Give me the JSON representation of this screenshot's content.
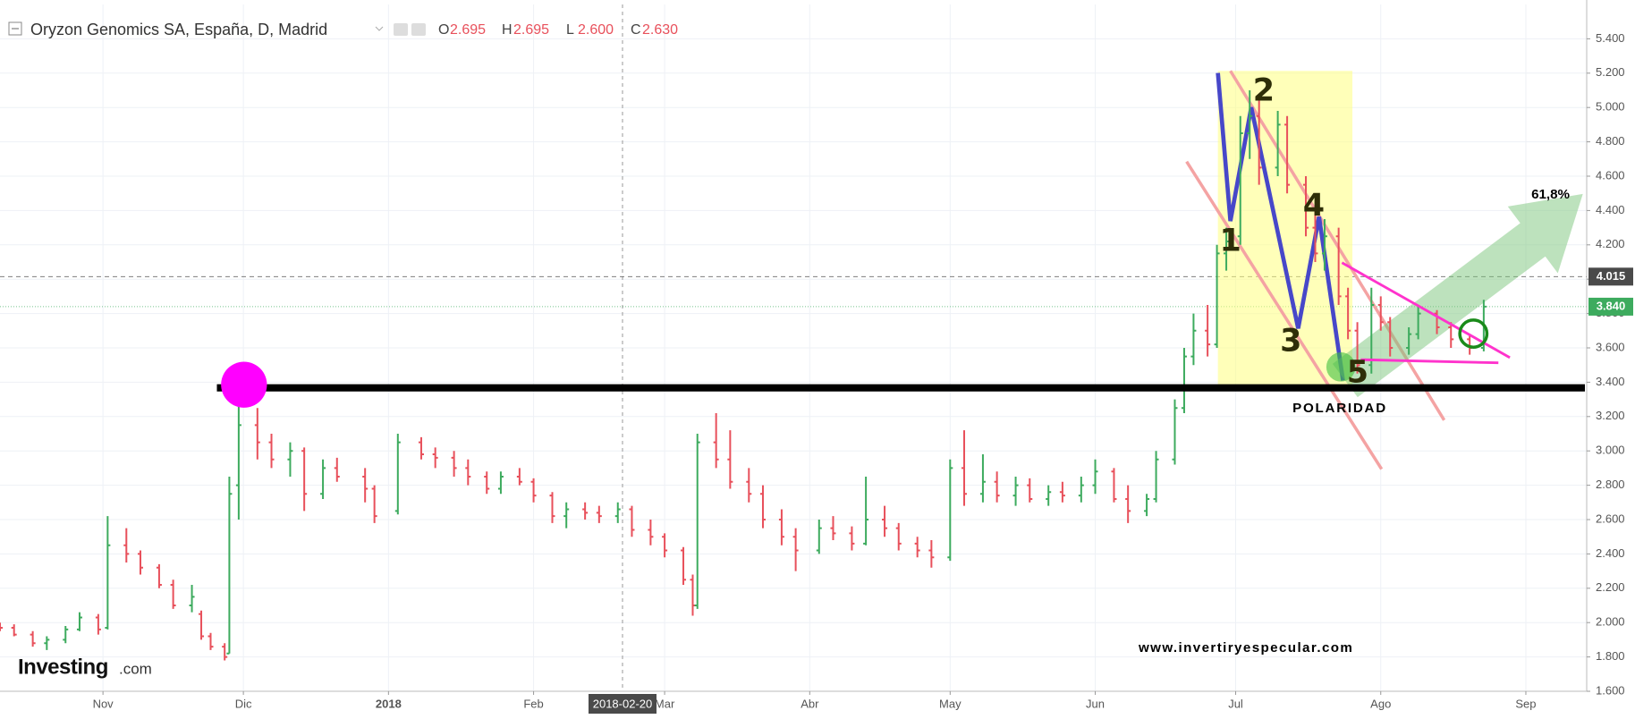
{
  "header": {
    "title": "Oryzon Genomics SA, España, D, Madrid",
    "ohlc": [
      {
        "key": "O",
        "text": "2.695"
      },
      {
        "key": "H",
        "text": "2.695"
      },
      {
        "key": "L",
        "text": "2.600"
      },
      {
        "key": "C",
        "text": "2.630"
      }
    ]
  },
  "logo": {
    "name": "Investing",
    "suffix": ".com"
  },
  "chart_data": {
    "type": "ohlc",
    "up_color": "#3dab5e",
    "down_color": "#e8505b",
    "grid": true,
    "x": [
      "2017-10-10",
      "2017-10-13",
      "2017-10-17",
      "2017-10-20",
      "2017-10-24",
      "2017-10-27",
      "2017-10-31",
      "2017-11-02",
      "2017-11-06",
      "2017-11-09",
      "2017-11-13",
      "2017-11-16",
      "2017-11-20",
      "2017-11-22",
      "2017-11-24",
      "2017-11-27",
      "2017-11-28",
      "2017-11-30",
      "2017-12-04",
      "2017-12-07",
      "2017-12-11",
      "2017-12-14",
      "2017-12-18",
      "2017-12-21",
      "2017-12-27",
      "2017-12-29",
      "2018-01-03",
      "2018-01-08",
      "2018-01-11",
      "2018-01-15",
      "2018-01-18",
      "2018-01-22",
      "2018-01-25",
      "2018-01-29",
      "2018-02-01",
      "2018-02-05",
      "2018-02-08",
      "2018-02-12",
      "2018-02-15",
      "2018-02-19",
      "2018-02-22",
      "2018-02-26",
      "2018-03-01",
      "2018-03-05",
      "2018-03-07",
      "2018-03-08",
      "2018-03-12",
      "2018-03-15",
      "2018-03-19",
      "2018-03-22",
      "2018-03-26",
      "2018-03-29",
      "2018-04-03",
      "2018-04-06",
      "2018-04-10",
      "2018-04-13",
      "2018-04-17",
      "2018-04-20",
      "2018-04-24",
      "2018-04-27",
      "2018-05-01",
      "2018-05-04",
      "2018-05-08",
      "2018-05-11",
      "2018-05-15",
      "2018-05-18",
      "2018-05-22",
      "2018-05-25",
      "2018-05-29",
      "2018-06-01",
      "2018-06-05",
      "2018-06-08",
      "2018-06-12",
      "2018-06-14",
      "2018-06-18",
      "2018-06-20",
      "2018-06-22",
      "2018-06-25",
      "2018-06-27",
      "2018-06-29",
      "2018-07-02",
      "2018-07-04",
      "2018-07-06",
      "2018-07-10",
      "2018-07-12",
      "2018-07-16",
      "2018-07-18",
      "2018-07-20",
      "2018-07-23",
      "2018-07-25",
      "2018-07-27",
      "2018-07-30",
      "2018-08-01",
      "2018-08-03",
      "2018-08-07",
      "2018-08-09",
      "2018-08-13",
      "2018-08-16",
      "2018-08-20",
      "2018-08-23"
    ],
    "open": [
      1.98,
      1.97,
      1.93,
      1.88,
      1.9,
      1.96,
      2.03,
      1.97,
      2.45,
      2.4,
      2.32,
      2.22,
      2.1,
      2.05,
      1.92,
      1.86,
      1.82,
      2.8,
      3.15,
      3.05,
      2.95,
      3.0,
      2.75,
      2.9,
      2.85,
      2.78,
      2.65,
      3.05,
      2.98,
      2.96,
      2.9,
      2.85,
      2.78,
      2.85,
      2.82,
      2.74,
      2.62,
      2.66,
      2.64,
      2.62,
      2.66,
      2.54,
      2.5,
      2.42,
      2.25,
      2.1,
      3.05,
      2.95,
      2.82,
      2.75,
      2.6,
      2.5,
      2.42,
      2.55,
      2.52,
      2.46,
      2.6,
      2.55,
      2.46,
      2.42,
      2.38,
      2.9,
      2.75,
      2.82,
      2.74,
      2.8,
      2.72,
      2.76,
      2.74,
      2.8,
      2.88,
      2.72,
      2.65,
      2.72,
      2.95,
      3.25,
      3.55,
      3.7,
      3.62,
      4.15,
      4.25,
      4.85,
      4.95,
      4.65,
      4.9,
      4.55,
      4.3,
      4.15,
      4.25,
      3.9,
      3.7,
      3.5,
      3.85,
      3.75,
      3.6,
      3.68,
      3.8,
      3.72,
      3.65,
      3.6
    ],
    "high": [
      2.0,
      1.99,
      1.95,
      1.92,
      1.98,
      2.06,
      2.05,
      2.62,
      2.55,
      2.42,
      2.34,
      2.25,
      2.22,
      2.07,
      1.94,
      1.88,
      2.85,
      3.35,
      3.25,
      3.1,
      3.05,
      3.02,
      2.95,
      2.96,
      2.9,
      2.8,
      3.1,
      3.08,
      3.02,
      3.0,
      2.95,
      2.88,
      2.88,
      2.9,
      2.84,
      2.76,
      2.7,
      2.7,
      2.68,
      2.7,
      2.68,
      2.6,
      2.52,
      2.44,
      2.28,
      3.1,
      3.22,
      3.12,
      2.9,
      2.8,
      2.66,
      2.55,
      2.6,
      2.62,
      2.56,
      2.85,
      2.68,
      2.58,
      2.5,
      2.48,
      2.95,
      3.12,
      2.98,
      2.88,
      2.85,
      2.84,
      2.8,
      2.82,
      2.85,
      2.95,
      2.9,
      2.8,
      2.75,
      3.0,
      3.3,
      3.6,
      3.8,
      3.85,
      4.2,
      4.3,
      4.95,
      5.1,
      5.05,
      4.98,
      4.95,
      4.6,
      4.4,
      4.35,
      4.3,
      3.95,
      3.75,
      3.95,
      3.9,
      3.78,
      3.72,
      3.85,
      3.82,
      3.75,
      3.68,
      3.88
    ],
    "low": [
      1.95,
      1.92,
      1.86,
      1.84,
      1.88,
      1.95,
      1.93,
      1.96,
      2.35,
      2.28,
      2.2,
      2.08,
      2.06,
      1.9,
      1.84,
      1.78,
      1.82,
      2.6,
      2.95,
      2.9,
      2.85,
      2.65,
      2.72,
      2.82,
      2.7,
      2.58,
      2.63,
      2.95,
      2.9,
      2.85,
      2.8,
      2.75,
      2.75,
      2.8,
      2.7,
      2.58,
      2.55,
      2.6,
      2.58,
      2.58,
      2.5,
      2.45,
      2.38,
      2.22,
      2.04,
      2.08,
      2.9,
      2.78,
      2.7,
      2.55,
      2.45,
      2.3,
      2.4,
      2.48,
      2.42,
      2.45,
      2.5,
      2.42,
      2.38,
      2.32,
      2.36,
      2.68,
      2.7,
      2.7,
      2.68,
      2.7,
      2.68,
      2.7,
      2.7,
      2.75,
      2.7,
      2.58,
      2.62,
      2.7,
      2.92,
      3.22,
      3.5,
      3.55,
      3.6,
      4.05,
      4.2,
      4.7,
      4.55,
      4.6,
      4.5,
      4.25,
      4.1,
      4.05,
      3.85,
      3.65,
      3.45,
      3.45,
      3.7,
      3.55,
      3.56,
      3.65,
      3.68,
      3.6,
      3.56,
      3.58
    ],
    "close": [
      1.97,
      1.93,
      1.88,
      1.9,
      1.96,
      2.03,
      1.96,
      2.45,
      2.4,
      2.32,
      2.22,
      2.1,
      2.15,
      1.92,
      1.86,
      1.8,
      2.75,
      3.15,
      3.05,
      2.95,
      3.0,
      2.75,
      2.9,
      2.85,
      2.78,
      2.62,
      3.05,
      2.98,
      2.96,
      2.9,
      2.85,
      2.78,
      2.85,
      2.82,
      2.74,
      2.62,
      2.66,
      2.64,
      2.62,
      2.66,
      2.54,
      2.5,
      2.42,
      2.25,
      2.1,
      3.05,
      2.95,
      2.82,
      2.75,
      2.6,
      2.5,
      2.42,
      2.55,
      2.52,
      2.46,
      2.6,
      2.55,
      2.46,
      2.42,
      2.38,
      2.9,
      2.75,
      2.82,
      2.74,
      2.8,
      2.72,
      2.76,
      2.74,
      2.8,
      2.88,
      2.72,
      2.65,
      2.72,
      2.95,
      3.25,
      3.55,
      3.7,
      3.62,
      4.15,
      4.22,
      4.85,
      4.95,
      4.65,
      4.9,
      4.55,
      4.3,
      4.15,
      4.25,
      3.9,
      3.7,
      3.5,
      3.85,
      3.75,
      3.6,
      3.68,
      3.8,
      3.72,
      3.65,
      3.6,
      3.84
    ],
    "xlim": [
      "2017-10-10",
      "2018-09-14"
    ],
    "xticks": [
      {
        "value": "2017-11-01",
        "label": "Nov"
      },
      {
        "value": "2017-12-01",
        "label": "Dic"
      },
      {
        "value": "2018-01-01",
        "label": "2018"
      },
      {
        "value": "2018-02-01",
        "label": "Feb"
      },
      {
        "value": "2018-03-01",
        "label": "Mar"
      },
      {
        "value": "2018-04-01",
        "label": "Abr"
      },
      {
        "value": "2018-05-01",
        "label": "May"
      },
      {
        "value": "2018-06-01",
        "label": "Jun"
      },
      {
        "value": "2018-07-01",
        "label": "Jul"
      },
      {
        "value": "2018-08-01",
        "label": "Ago"
      },
      {
        "value": "2018-09-01",
        "label": "Sep"
      }
    ],
    "ylim": [
      1.6,
      5.6
    ],
    "yticks": [
      {
        "value": 1.6,
        "label": "1.600"
      },
      {
        "value": 1.8,
        "label": "1.800"
      },
      {
        "value": 2.0,
        "label": "2.000"
      },
      {
        "value": 2.2,
        "label": "2.200"
      },
      {
        "value": 2.4,
        "label": "2.400"
      },
      {
        "value": 2.6,
        "label": "2.600"
      },
      {
        "value": 2.8,
        "label": "2.800"
      },
      {
        "value": 3.0,
        "label": "3.000"
      },
      {
        "value": 3.2,
        "label": "3.200"
      },
      {
        "value": 3.4,
        "label": "3.400"
      },
      {
        "value": 3.6,
        "label": "3.600"
      },
      {
        "value": 3.8,
        "label": "3.800"
      },
      {
        "value": 4.0,
        "label": "4.000"
      },
      {
        "value": 4.2,
        "label": "4.200"
      },
      {
        "value": 4.4,
        "label": "4.400"
      },
      {
        "value": 4.6,
        "label": "4.600"
      },
      {
        "value": 4.8,
        "label": "4.800"
      },
      {
        "value": 5.0,
        "label": "5.000"
      },
      {
        "value": 5.2,
        "label": "5.200"
      },
      {
        "value": 5.4,
        "label": "5.400"
      }
    ],
    "price_lines": [
      {
        "value": 4.015,
        "label": "4.015",
        "color": "#4a4a4a",
        "dash": "5 4"
      },
      {
        "value": 3.84,
        "label": "3.840",
        "color": "#3dab5e",
        "dash": "1 2"
      }
    ],
    "crosshair": "2018-02-20",
    "annotations": {
      "waves": [
        "1",
        "2",
        "3",
        "4",
        "5"
      ],
      "target": "61,8%",
      "support": "POLARIDAD",
      "watermark": "www.invertiryespecular.com"
    }
  }
}
